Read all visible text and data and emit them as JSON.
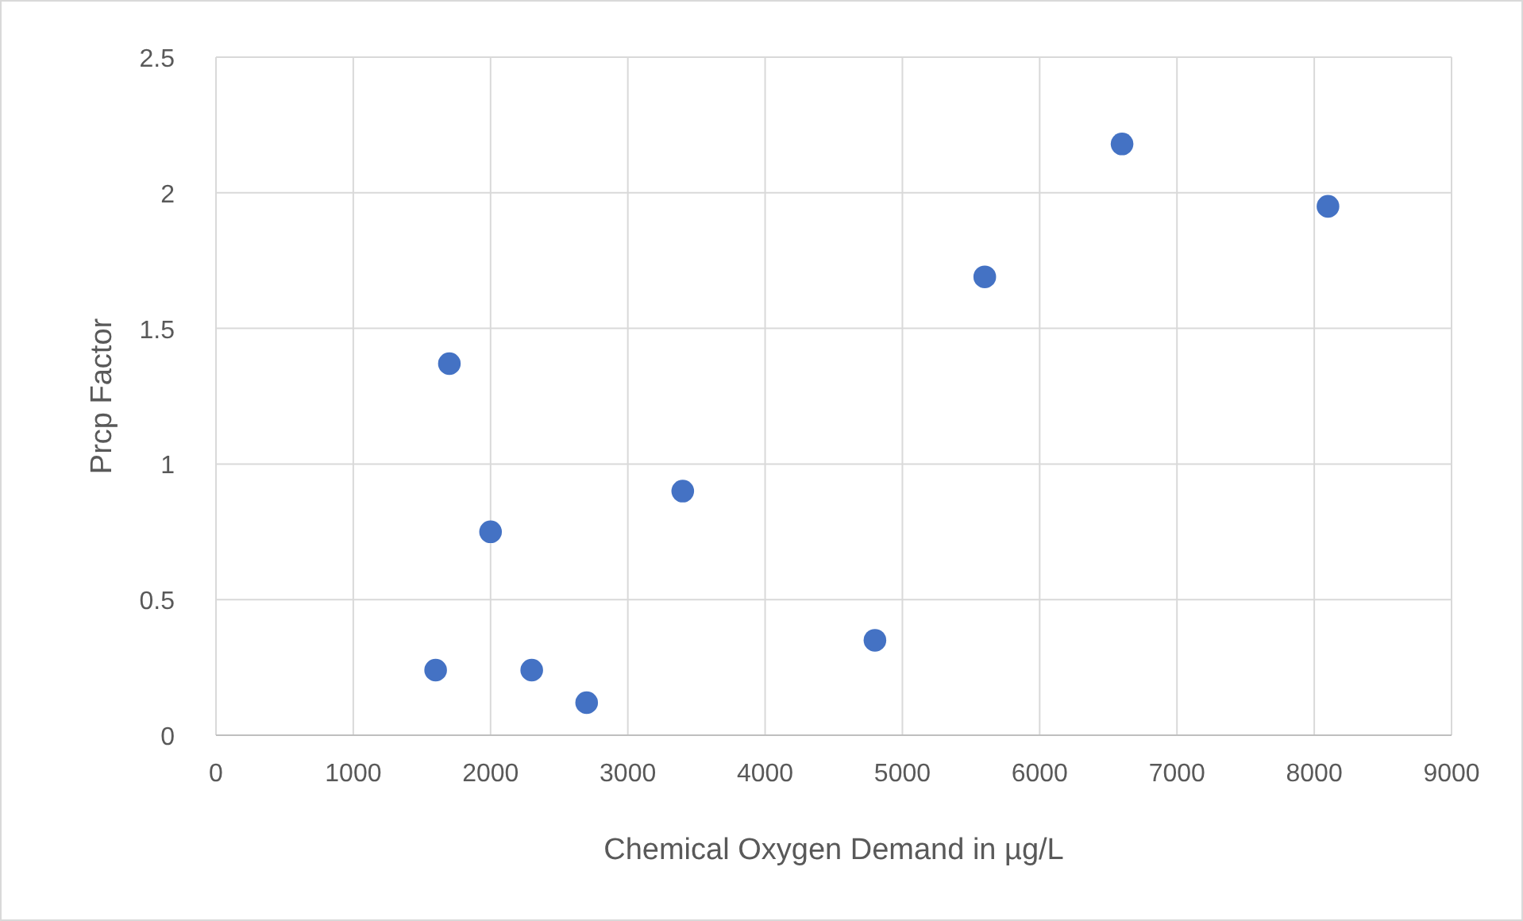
{
  "chart_data": {
    "type": "scatter",
    "xlabel": "Chemical Oxygen Demand in µg/L",
    "ylabel": "Prcp Factor",
    "x": [
      1600,
      1700,
      2000,
      2300,
      2700,
      3400,
      4800,
      5600,
      6600,
      8100
    ],
    "values": [
      0.24,
      1.37,
      0.75,
      0.24,
      0.12,
      0.9,
      0.35,
      1.69,
      2.18,
      1.95
    ],
    "color": "#4472c4",
    "marker": "circle",
    "xlim": [
      0,
      9000
    ],
    "xticks": [
      0,
      1000,
      2000,
      3000,
      4000,
      5000,
      6000,
      7000,
      8000,
      9000
    ],
    "ylim": [
      0,
      2.5
    ],
    "yticks": [
      0,
      0.5,
      1,
      1.5,
      2,
      2.5
    ],
    "grid": true
  }
}
